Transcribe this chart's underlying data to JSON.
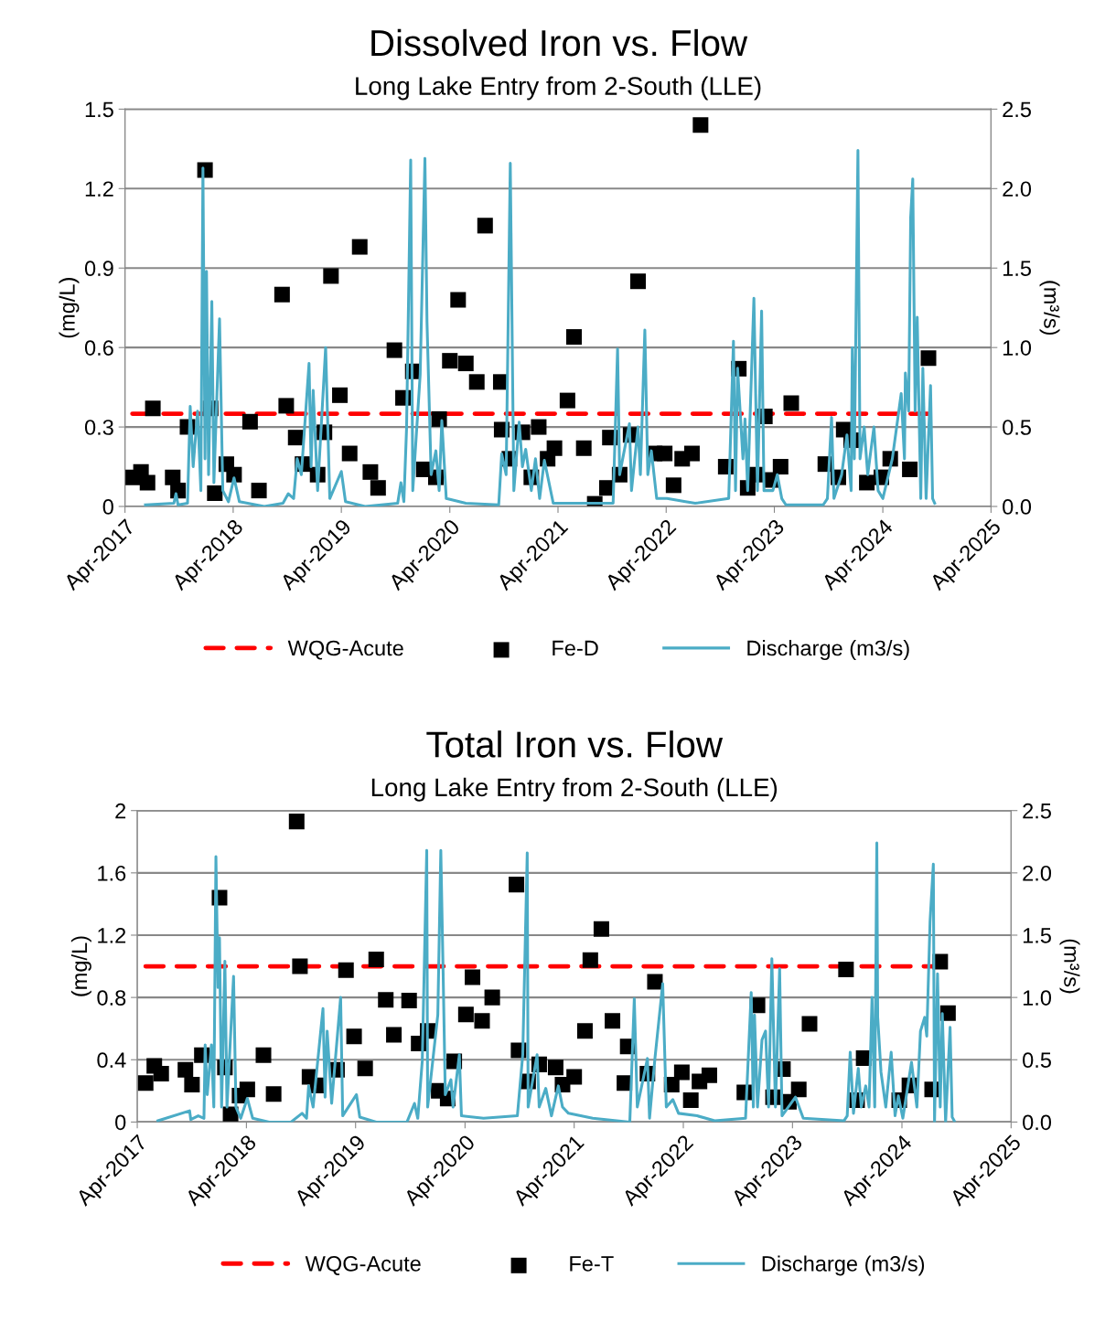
{
  "chart_data": [
    {
      "type": "scatter",
      "title": "Dissolved Iron vs. Flow",
      "subtitle": "Long Lake Entry from 2-South (LLE)",
      "ylabel": "(mg/L)",
      "y2label": "(m³/s)",
      "xlim": [
        "2017-04-01",
        "2025-04-01"
      ],
      "xticks": [
        {
          "value": "2017-04-01",
          "label": "Apr-2017"
        },
        {
          "value": "2018-04-01",
          "label": "Apr-2018"
        },
        {
          "value": "2019-04-01",
          "label": "Apr-2019"
        },
        {
          "value": "2020-04-01",
          "label": "Apr-2020"
        },
        {
          "value": "2021-04-01",
          "label": "Apr-2021"
        },
        {
          "value": "2022-04-01",
          "label": "Apr-2022"
        },
        {
          "value": "2023-04-01",
          "label": "Apr-2023"
        },
        {
          "value": "2024-04-01",
          "label": "Apr-2024"
        },
        {
          "value": "2025-04-01",
          "label": "Apr-2025"
        }
      ],
      "ylim": [
        0,
        1.5
      ],
      "yticks": [
        0,
        0.3,
        0.6,
        0.9,
        1.2,
        1.5
      ],
      "y2lim": [
        0,
        2.5
      ],
      "y2ticks": [
        {
          "value": 0,
          "label": "0.0"
        },
        0.5,
        {
          "value": 1,
          "label": "1.0"
        },
        1.5,
        {
          "value": 2,
          "label": "2.0"
        },
        2.5
      ],
      "grid": "y",
      "legend": "bottom",
      "ref_lines": [
        {
          "axis": "y",
          "value": 0.35,
          "label": "WQG-Acute",
          "color": "#ff0000",
          "line_style": "dashed"
        }
      ],
      "series": [
        {
          "name": "Fe-D",
          "marker": "square",
          "color": "#000000",
          "x": [
            "2017-04-26",
            "2017-05-25",
            "2017-06-16",
            "2017-07-04",
            "2017-09-09",
            "2017-09-27",
            "2017-10-29",
            "2017-12-27",
            "2018-01-15",
            "2018-01-29",
            "2018-03-09",
            "2018-04-04",
            "2018-05-28",
            "2018-06-27",
            "2018-09-13",
            "2018-09-27",
            "2018-10-29",
            "2018-11-21",
            "2019-01-11",
            "2019-02-03",
            "2019-02-25",
            "2019-03-27",
            "2019-04-29",
            "2019-06-02",
            "2019-07-08",
            "2019-08-03",
            "2019-09-27",
            "2019-10-26",
            "2019-11-28",
            "2020-01-04",
            "2020-02-14",
            "2020-02-25",
            "2020-04-01",
            "2020-04-29",
            "2020-05-25",
            "2020-07-01",
            "2020-07-29",
            "2020-09-20",
            "2020-09-23",
            "2020-10-19",
            "2020-12-02",
            "2021-01-01",
            "2021-01-26",
            "2021-02-25",
            "2021-03-20",
            "2021-05-03",
            "2021-05-25",
            "2021-06-27",
            "2021-08-03",
            "2021-09-13",
            "2021-09-23",
            "2021-10-26",
            "2021-12-02",
            "2021-12-27",
            "2022-02-21",
            "2022-03-27",
            "2022-04-26",
            "2022-05-25",
            "2022-06-27",
            "2022-07-26",
            "2022-10-19",
            "2022-12-02",
            "2023-01-01",
            "2023-01-26",
            "2023-02-28",
            "2023-03-20",
            "2023-04-22",
            "2023-05-28",
            "2023-09-20",
            "2023-11-03",
            "2023-11-21",
            "2023-12-16",
            "2024-02-07",
            "2024-03-27",
            "2024-04-26",
            "2024-07-01",
            "2024-09-02"
          ],
          "values": [
            0.11,
            0.13,
            0.09,
            0.37,
            0.11,
            0.06,
            0.3,
            1.27,
            0.37,
            0.05,
            0.16,
            0.12,
            0.32,
            0.06,
            0.8,
            0.38,
            0.26,
            0.16,
            0.12,
            0.28,
            0.87,
            0.42,
            0.2,
            0.98,
            0.13,
            0.07,
            0.59,
            0.41,
            0.51,
            0.14,
            0.11,
            0.33,
            0.55,
            0.78,
            0.54,
            0.47,
            1.06,
            0.47,
            0.29,
            0.18,
            0.28,
            0.11,
            0.3,
            0.18,
            0.22,
            0.4,
            0.64,
            0.22,
            0.01,
            0.07,
            0.26,
            0.12,
            0.27,
            0.85,
            0.2,
            0.2,
            0.08,
            0.18,
            0.2,
            1.44,
            0.15,
            0.52,
            0.07,
            0.12,
            0.34,
            0.1,
            0.15,
            0.39,
            0.16,
            0.11,
            0.29,
            0.25,
            0.09,
            0.11,
            0.18,
            0.14,
            0.56
          ]
        },
        {
          "name": "Discharge (m3/s)",
          "type": "line",
          "axis": "y2",
          "color": "#4bacc6",
          "x": [
            "2017-06-09",
            "2017-09-13",
            "2017-09-20",
            "2017-09-27",
            "2017-10-29",
            "2017-11-07",
            "2017-11-17",
            "2017-12-02",
            "2017-12-13",
            "2017-12-20",
            "2017-12-27",
            "2018-01-01",
            "2018-01-08",
            "2018-01-19",
            "2018-01-26",
            "2018-02-14",
            "2018-02-25",
            "2018-03-16",
            "2018-04-04",
            "2018-04-22",
            "2018-07-15",
            "2018-09-16",
            "2018-10-04",
            "2018-10-22",
            "2018-11-03",
            "2018-11-17",
            "2018-12-13",
            "2018-12-20",
            "2018-12-27",
            "2019-01-11",
            "2019-02-07",
            "2019-02-21",
            "2019-04-01",
            "2019-04-15",
            "2019-06-20",
            "2019-10-08",
            "2019-10-19",
            "2019-10-29",
            "2019-11-07",
            "2019-11-21",
            "2019-11-28",
            "2019-12-23",
            "2020-01-08",
            "2020-01-15",
            "2020-01-29",
            "2020-02-14",
            "2020-02-25",
            "2020-03-05",
            "2020-03-20",
            "2020-05-25",
            "2020-09-13",
            "2020-09-23",
            "2020-10-08",
            "2020-10-22",
            "2020-11-03",
            "2020-11-21",
            "2020-12-02",
            "2020-12-13",
            "2021-01-01",
            "2021-01-15",
            "2021-01-29",
            "2021-02-14",
            "2021-03-16",
            "2021-06-02",
            "2021-10-04",
            "2021-10-19",
            "2021-10-26",
            "2021-11-28",
            "2021-12-05",
            "2021-12-27",
            "2022-01-04",
            "2022-01-19",
            "2022-01-29",
            "2022-02-10",
            "2022-02-28",
            "2022-04-04",
            "2022-06-05",
            "2022-07-08",
            "2022-10-29",
            "2022-11-14",
            "2022-11-21",
            "2022-11-28",
            "2022-12-16",
            "2022-12-23",
            "2023-01-01",
            "2023-01-22",
            "2023-02-03",
            "2023-02-17",
            "2023-02-25",
            "2023-03-27",
            "2023-04-11",
            "2023-04-26",
            "2023-05-10",
            "2023-09-13",
            "2023-09-27",
            "2023-10-11",
            "2023-10-19",
            "2023-11-14",
            "2023-12-02",
            "2023-12-16",
            "2023-12-20",
            "2023-12-27",
            "2024-01-08",
            "2024-01-15",
            "2024-01-29",
            "2024-02-10",
            "2024-03-02",
            "2024-03-16",
            "2024-04-01",
            "2024-05-03",
            "2024-06-02",
            "2024-06-13",
            "2024-06-16",
            "2024-06-27",
            "2024-07-04",
            "2024-07-11",
            "2024-07-19",
            "2024-07-26",
            "2024-08-07",
            "2024-08-14",
            "2024-08-25",
            "2024-09-09",
            "2024-09-16",
            "2024-09-23"
          ],
          "values": [
            0.01,
            0.02,
            0.08,
            0.01,
            0.02,
            0.63,
            0.25,
            0.6,
            0.1,
            2.13,
            0.3,
            1.48,
            0.2,
            1.29,
            0.15,
            1.18,
            0.1,
            0.03,
            0.18,
            0.03,
            0.0,
            0.02,
            0.08,
            0.05,
            0.3,
            0.2,
            0.9,
            0.25,
            0.73,
            0.1,
            1.0,
            0.05,
            0.22,
            0.03,
            0.0,
            0.02,
            0.15,
            0.03,
            0.49,
            2.18,
            0.1,
            0.83,
            2.19,
            1.16,
            0.2,
            0.35,
            0.1,
            0.54,
            0.05,
            0.02,
            0.01,
            0.33,
            0.2,
            2.16,
            0.1,
            0.53,
            0.25,
            0.36,
            0.1,
            0.3,
            0.05,
            0.29,
            0.02,
            0.02,
            0.02,
            0.99,
            0.2,
            0.52,
            0.1,
            0.5,
            0.2,
            1.11,
            0.2,
            0.35,
            0.05,
            0.05,
            0.03,
            0.02,
            0.05,
            1.04,
            0.1,
            0.87,
            0.3,
            0.55,
            0.1,
            1.31,
            0.1,
            1.23,
            0.1,
            0.1,
            0.2,
            0.05,
            0.01,
            0.01,
            0.05,
            0.56,
            0.05,
            0.2,
            0.45,
            0.1,
            1.0,
            0.3,
            2.24,
            0.3,
            0.5,
            0.2,
            0.5,
            0.1,
            0.05,
            0.3,
            0.71,
            0.3,
            0.84,
            0.6,
            1.82,
            2.06,
            0.6,
            1.19,
            0.05,
            0.87,
            0.05,
            0.76,
            0.05,
            0.02
          ]
        }
      ]
    },
    {
      "type": "scatter",
      "title": "Total Iron vs. Flow",
      "subtitle": "Long Lake Entry from 2-South (LLE)",
      "ylabel": "(mg/L)",
      "y2label": "(m³/s)",
      "xlim": [
        "2017-04-01",
        "2025-04-01"
      ],
      "xticks": [
        {
          "value": "2017-04-01",
          "label": "Apr-2017"
        },
        {
          "value": "2018-04-01",
          "label": "Apr-2018"
        },
        {
          "value": "2019-04-01",
          "label": "Apr-2019"
        },
        {
          "value": "2020-04-01",
          "label": "Apr-2020"
        },
        {
          "value": "2021-04-01",
          "label": "Apr-2021"
        },
        {
          "value": "2022-04-01",
          "label": "Apr-2022"
        },
        {
          "value": "2023-04-01",
          "label": "Apr-2023"
        },
        {
          "value": "2024-04-01",
          "label": "Apr-2024"
        },
        {
          "value": "2025-04-01",
          "label": "Apr-2025"
        }
      ],
      "ylim": [
        0,
        2
      ],
      "yticks": [
        0,
        0.4,
        0.8,
        1.2,
        1.6,
        2
      ],
      "y2lim": [
        0,
        2.5
      ],
      "y2ticks": [
        {
          "value": 0,
          "label": "0.0"
        },
        0.5,
        {
          "value": 1,
          "label": "1.0"
        },
        1.5,
        {
          "value": 2,
          "label": "2.0"
        },
        2.5
      ],
      "grid": "y",
      "legend": "bottom",
      "ref_lines": [
        {
          "axis": "y",
          "value": 1.0,
          "label": "WQG-Acute",
          "color": "#ff0000",
          "line_style": "dashed"
        }
      ],
      "series": [
        {
          "name": "Fe-T",
          "marker": "square",
          "color": "#000000",
          "x": [
            "2017-04-29",
            "2017-05-28",
            "2017-06-20",
            "2017-09-09",
            "2017-10-01",
            "2017-11-03",
            "2018-01-01",
            "2018-01-19",
            "2018-02-07",
            "2018-03-09",
            "2018-04-04",
            "2018-05-28",
            "2018-07-01",
            "2018-09-16",
            "2018-09-27",
            "2018-10-29",
            "2018-11-25",
            "2019-01-29",
            "2019-02-28",
            "2019-03-27",
            "2019-05-03",
            "2019-06-09",
            "2019-07-11",
            "2019-08-07",
            "2019-09-27",
            "2019-10-29",
            "2019-11-28",
            "2020-01-04",
            "2020-02-03",
            "2020-02-25",
            "2020-04-04",
            "2020-04-26",
            "2020-05-28",
            "2020-07-01",
            "2020-09-20",
            "2020-09-27",
            "2020-10-29",
            "2020-12-05",
            "2021-01-29",
            "2021-02-21",
            "2021-04-01",
            "2021-05-07",
            "2021-05-25",
            "2021-07-01",
            "2021-08-07",
            "2021-09-16",
            "2021-09-27",
            "2021-12-02",
            "2021-12-27",
            "2022-02-21",
            "2022-03-27",
            "2022-04-26",
            "2022-05-25",
            "2022-06-27",
            "2022-10-22",
            "2022-12-05",
            "2023-01-26",
            "2023-02-28",
            "2023-03-20",
            "2023-04-22",
            "2023-05-28",
            "2023-09-27",
            "2023-11-03",
            "2023-11-25",
            "2024-03-23",
            "2024-04-26",
            "2024-07-11",
            "2024-08-07",
            "2024-09-02"
          ],
          "values": [
            0.25,
            0.36,
            0.31,
            0.335,
            0.24,
            0.43,
            1.44,
            0.35,
            0.05,
            0.17,
            0.21,
            0.43,
            0.18,
            1.93,
            1.0,
            0.29,
            0.235,
            0.335,
            0.975,
            0.55,
            0.345,
            1.045,
            0.785,
            0.56,
            0.78,
            0.505,
            0.585,
            0.2,
            0.15,
            0.39,
            0.69,
            0.93,
            0.65,
            0.8,
            1.525,
            0.46,
            0.26,
            0.37,
            0.35,
            0.24,
            0.29,
            0.585,
            1.04,
            1.24,
            0.65,
            0.25,
            0.485,
            0.31,
            0.9,
            0.24,
            0.32,
            0.14,
            0.26,
            0.3,
            0.19,
            0.75,
            0.16,
            0.34,
            0.13,
            0.21,
            0.63,
            0.98,
            0.14,
            0.41,
            0.14,
            0.235,
            0.21,
            1.03,
            0.7
          ]
        },
        {
          "name": "Discharge (m3/s)",
          "type": "line",
          "axis": "y2",
          "color": "#4bacc6",
          "x": [
            "2017-06-09",
            "2017-09-23",
            "2017-09-27",
            "2017-10-22",
            "2017-11-10",
            "2017-11-14",
            "2017-11-21",
            "2017-12-05",
            "2017-12-13",
            "2017-12-20",
            "2017-12-27",
            "2018-01-01",
            "2018-01-08",
            "2018-01-19",
            "2018-01-26",
            "2018-02-17",
            "2018-02-25",
            "2018-03-13",
            "2018-04-04",
            "2018-04-22",
            "2018-06-16",
            "2018-08-28",
            "2018-10-04",
            "2018-10-19",
            "2018-10-26",
            "2018-11-10",
            "2018-12-13",
            "2018-12-20",
            "2018-12-27",
            "2019-01-11",
            "2019-02-10",
            "2019-02-17",
            "2019-04-04",
            "2019-04-15",
            "2019-06-09",
            "2019-09-20",
            "2019-10-15",
            "2019-10-26",
            "2019-11-10",
            "2019-11-25",
            "2019-11-28",
            "2020-01-01",
            "2020-01-11",
            "2020-01-19",
            "2020-01-26",
            "2020-02-14",
            "2020-02-21",
            "2020-03-13",
            "2020-03-20",
            "2020-06-02",
            "2020-09-23",
            "2020-10-11",
            "2020-10-26",
            "2020-10-29",
            "2020-11-28",
            "2020-12-05",
            "2020-12-27",
            "2021-01-15",
            "2021-02-07",
            "2021-02-21",
            "2021-03-13",
            "2021-06-02",
            "2021-10-04",
            "2021-10-19",
            "2021-10-29",
            "2021-12-02",
            "2021-12-09",
            "2021-12-27",
            "2022-01-22",
            "2022-02-03",
            "2022-02-25",
            "2022-03-16",
            "2022-05-17",
            "2022-07-15",
            "2022-10-26",
            "2022-11-14",
            "2022-11-21",
            "2022-11-25",
            "2022-12-05",
            "2022-12-20",
            "2023-01-01",
            "2023-01-11",
            "2023-01-22",
            "2023-02-03",
            "2023-02-17",
            "2023-02-25",
            "2023-04-11",
            "2023-05-07",
            "2023-09-20",
            "2023-10-01",
            "2023-10-11",
            "2023-10-22",
            "2023-11-07",
            "2023-11-17",
            "2023-12-02",
            "2023-12-13",
            "2023-12-23",
            "2024-01-01",
            "2024-01-08",
            "2024-01-11",
            "2024-01-22",
            "2024-02-07",
            "2024-02-25",
            "2024-03-09",
            "2024-03-20",
            "2024-04-04",
            "2024-05-03",
            "2024-05-21",
            "2024-06-02",
            "2024-06-16",
            "2024-06-23",
            "2024-07-04",
            "2024-07-15",
            "2024-07-19",
            "2024-07-29",
            "2024-08-07",
            "2024-08-14",
            "2024-08-25",
            "2024-09-09",
            "2024-09-16",
            "2024-09-23"
          ],
          "values": [
            0.01,
            0.09,
            0.02,
            0.05,
            0.03,
            0.62,
            0.22,
            0.62,
            0.12,
            2.13,
            1.08,
            1.48,
            0.12,
            1.29,
            0.12,
            1.17,
            0.12,
            0.03,
            0.19,
            0.03,
            0.0,
            0.0,
            0.07,
            0.03,
            0.29,
            0.12,
            0.91,
            0.2,
            0.73,
            0.15,
            1.0,
            0.05,
            0.22,
            0.04,
            0.0,
            0.0,
            0.15,
            0.03,
            0.49,
            2.18,
            0.12,
            0.86,
            2.18,
            1.17,
            0.22,
            0.34,
            0.12,
            0.54,
            0.05,
            0.03,
            0.05,
            0.54,
            2.16,
            0.12,
            0.54,
            0.12,
            0.27,
            0.05,
            0.29,
            0.12,
            0.07,
            0.03,
            0.0,
            0.99,
            0.12,
            0.51,
            0.03,
            0.51,
            1.11,
            0.12,
            0.18,
            0.07,
            0.05,
            0.01,
            0.03,
            1.04,
            0.12,
            0.86,
            0.12,
            0.66,
            0.73,
            0.12,
            1.31,
            0.12,
            1.23,
            0.05,
            0.2,
            0.03,
            0.01,
            0.05,
            0.56,
            0.07,
            0.43,
            0.12,
            0.29,
            0.12,
            1.0,
            0.12,
            2.24,
            0.84,
            0.4,
            0.12,
            0.56,
            0.05,
            0.21,
            0.03,
            0.48,
            0.12,
            0.73,
            0.84,
            0.69,
            1.61,
            2.07,
            0.0,
            1.19,
            0.12,
            0.87,
            0.0,
            0.76,
            0.04,
            0.01
          ]
        }
      ]
    }
  ]
}
